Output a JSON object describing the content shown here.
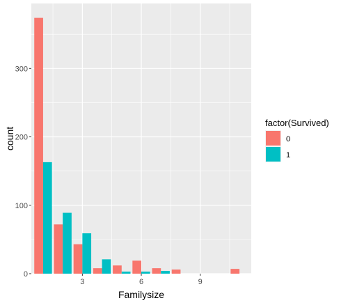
{
  "chart_data": {
    "type": "bar",
    "position": "dodge",
    "xlabel": "Familysize",
    "ylabel": "count",
    "x_ticks": [
      3,
      6,
      9
    ],
    "y_ticks": [
      0,
      100,
      200,
      300
    ],
    "xlim": [
      0.4,
      11.6
    ],
    "ylim": [
      0,
      395
    ],
    "grid": true,
    "legend": {
      "title": "factor(Survived)",
      "position": "right",
      "entries": [
        {
          "label": "0",
          "color": "#F8766D"
        },
        {
          "label": "1",
          "color": "#00BFC4"
        }
      ]
    },
    "series": [
      {
        "key": "0",
        "color": "#F8766D",
        "points": [
          {
            "x": 1,
            "y": 374
          },
          {
            "x": 2,
            "y": 72
          },
          {
            "x": 3,
            "y": 43
          },
          {
            "x": 4,
            "y": 8
          },
          {
            "x": 5,
            "y": 12
          },
          {
            "x": 6,
            "y": 19
          },
          {
            "x": 7,
            "y": 8
          },
          {
            "x": 8,
            "y": 6
          },
          {
            "x": 11,
            "y": 7
          }
        ]
      },
      {
        "key": "1",
        "color": "#00BFC4",
        "points": [
          {
            "x": 1,
            "y": 163
          },
          {
            "x": 2,
            "y": 89
          },
          {
            "x": 3,
            "y": 59
          },
          {
            "x": 4,
            "y": 21
          },
          {
            "x": 5,
            "y": 3
          },
          {
            "x": 6,
            "y": 3
          },
          {
            "x": 7,
            "y": 4
          },
          {
            "x": 8,
            "y": 0
          },
          {
            "x": 11,
            "y": 0
          }
        ]
      }
    ]
  }
}
